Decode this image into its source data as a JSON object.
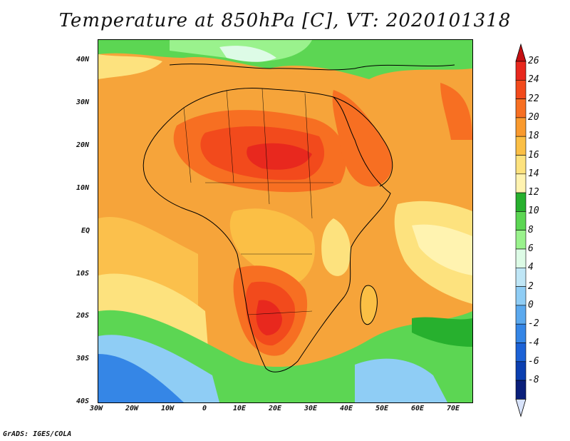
{
  "title": "Temperature at 850hPa [C], VT: 2020101318",
  "credit": "GrADS: IGES/COLA",
  "lat_ticks": [
    "40N",
    "30N",
    "20N",
    "10N",
    "EQ",
    "10S",
    "20S",
    "30S",
    "40S"
  ],
  "lon_ticks": [
    "30W",
    "20W",
    "10W",
    "0",
    "10E",
    "20E",
    "30E",
    "40E",
    "50E",
    "60E",
    "70E"
  ],
  "colorbar": {
    "labels": [
      "26",
      "24",
      "22",
      "20",
      "18",
      "16",
      "14",
      "12",
      "10",
      "8",
      "6",
      "4",
      "2",
      "0",
      "-2",
      "-4",
      "-6",
      "-8"
    ],
    "colors": [
      "#e8281e",
      "#f24a1c",
      "#f76f22",
      "#f99a2e",
      "#fbbf45",
      "#fde27e",
      "#fff3b0",
      "#27b02e",
      "#5cd653",
      "#9af28d",
      "#ddfbe6",
      "#bfe6f6",
      "#8fcdf5",
      "#5ba9ee",
      "#3586e6",
      "#1c62d6",
      "#0b3fb0",
      "#0a1f7a"
    ],
    "top_color": "#c40f12",
    "bottom_color": "#d8e3fb"
  }
}
